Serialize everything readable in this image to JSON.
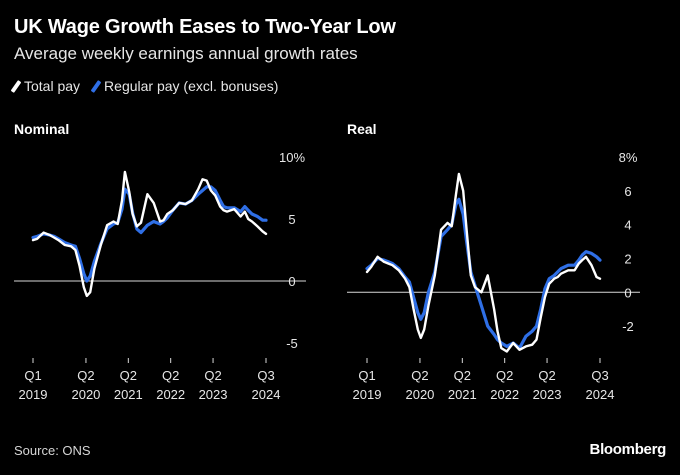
{
  "title": "UK Wage Growth Eases to Two-Year Low",
  "subtitle": "Average weekly earnings annual growth rates",
  "legend": [
    {
      "label": "Total pay",
      "color": "#ffffff"
    },
    {
      "label": "Regular pay (excl. bonuses)",
      "color": "#2f6fe6"
    }
  ],
  "source": "Source: ONS",
  "brand": "Bloomberg",
  "chart_data": [
    {
      "type": "line",
      "title": "Nominal",
      "ylim": [
        -5,
        10
      ],
      "yticks": [
        10,
        5,
        0,
        -5
      ],
      "ytick_labels": [
        "10%",
        "5",
        "0",
        "-5"
      ],
      "xticks": [
        {
          "x": 2019.0,
          "label": "Q1\n2019"
        },
        {
          "x": 2020.25,
          "label": "Q2\n2020"
        },
        {
          "x": 2021.25,
          "label": "Q2\n2021"
        },
        {
          "x": 2022.25,
          "label": "Q2\n2022"
        },
        {
          "x": 2023.25,
          "label": "Q2\n2023"
        },
        {
          "x": 2024.5,
          "label": "Q3\n2024"
        }
      ],
      "xlim": [
        2019.0,
        2024.67
      ],
      "series": [
        {
          "name": "Total pay",
          "color": "#ffffff",
          "x": [
            2019.0,
            2019.1,
            2019.25,
            2019.4,
            2019.5,
            2019.6,
            2019.75,
            2019.9,
            2020.0,
            2020.1,
            2020.2,
            2020.27,
            2020.35,
            2020.45,
            2020.6,
            2020.75,
            2020.9,
            2021.0,
            2021.1,
            2021.17,
            2021.27,
            2021.35,
            2021.45,
            2021.55,
            2021.7,
            2021.85,
            2022.0,
            2022.08,
            2022.17,
            2022.3,
            2022.45,
            2022.6,
            2022.75,
            2022.9,
            2023.0,
            2023.1,
            2023.2,
            2023.3,
            2023.42,
            2023.5,
            2023.58,
            2023.75,
            2023.9,
            2024.0,
            2024.08,
            2024.17,
            2024.3,
            2024.42,
            2024.5
          ],
          "y": [
            3.3,
            3.4,
            3.9,
            3.7,
            3.5,
            3.3,
            2.9,
            2.8,
            2.5,
            1.2,
            -0.5,
            -1.2,
            -0.9,
            1.0,
            2.9,
            4.5,
            4.8,
            4.6,
            6.5,
            8.8,
            7.2,
            5.4,
            4.4,
            4.7,
            7.0,
            6.3,
            4.8,
            4.9,
            5.4,
            5.7,
            6.3,
            6.2,
            6.5,
            7.4,
            8.2,
            8.1,
            7.3,
            6.9,
            6.0,
            5.7,
            5.6,
            5.8,
            5.2,
            5.6,
            5.0,
            4.8,
            4.4,
            4.0,
            3.8
          ]
        },
        {
          "name": "Regular pay (excl. bonuses)",
          "color": "#2f6fe6",
          "x": [
            2019.0,
            2019.1,
            2019.25,
            2019.4,
            2019.5,
            2019.6,
            2019.75,
            2019.9,
            2020.0,
            2020.1,
            2020.2,
            2020.27,
            2020.35,
            2020.45,
            2020.6,
            2020.75,
            2020.9,
            2021.0,
            2021.1,
            2021.17,
            2021.27,
            2021.35,
            2021.45,
            2021.55,
            2021.7,
            2021.85,
            2022.0,
            2022.08,
            2022.17,
            2022.3,
            2022.45,
            2022.6,
            2022.75,
            2022.9,
            2023.0,
            2023.1,
            2023.2,
            2023.3,
            2023.42,
            2023.5,
            2023.58,
            2023.75,
            2023.9,
            2024.0,
            2024.08,
            2024.17,
            2024.3,
            2024.42,
            2024.5
          ],
          "y": [
            3.5,
            3.6,
            3.8,
            3.7,
            3.6,
            3.4,
            3.1,
            2.9,
            2.8,
            1.8,
            0.6,
            0.0,
            0.4,
            1.6,
            3.0,
            4.2,
            4.6,
            4.7,
            5.8,
            7.4,
            7.0,
            5.5,
            4.2,
            3.9,
            4.5,
            4.8,
            4.6,
            4.8,
            5.1,
            5.7,
            6.3,
            6.2,
            6.5,
            7.0,
            7.3,
            7.6,
            7.6,
            7.3,
            6.5,
            6.0,
            5.9,
            5.9,
            5.6,
            6.0,
            5.7,
            5.4,
            5.2,
            4.9,
            4.9
          ]
        }
      ]
    },
    {
      "type": "line",
      "title": "Real",
      "ylim": [
        -3,
        8
      ],
      "yticks": [
        8,
        6,
        4,
        2,
        0,
        -2
      ],
      "ytick_labels": [
        "8%",
        "6",
        "4",
        "2",
        "0",
        "-2"
      ],
      "xticks": [
        {
          "x": 2019.0,
          "label": "Q1\n2019"
        },
        {
          "x": 2020.25,
          "label": "Q2\n2020"
        },
        {
          "x": 2021.25,
          "label": "Q2\n2021"
        },
        {
          "x": 2022.25,
          "label": "Q2\n2022"
        },
        {
          "x": 2023.25,
          "label": "Q2\n2023"
        },
        {
          "x": 2024.5,
          "label": "Q3\n2024"
        }
      ],
      "xlim": [
        2019.0,
        2024.67
      ],
      "series": [
        {
          "name": "Total pay",
          "color": "#ffffff",
          "x": [
            2019.0,
            2019.1,
            2019.25,
            2019.4,
            2019.5,
            2019.6,
            2019.75,
            2019.9,
            2020.0,
            2020.1,
            2020.2,
            2020.27,
            2020.35,
            2020.45,
            2020.6,
            2020.75,
            2020.9,
            2021.0,
            2021.1,
            2021.17,
            2021.27,
            2021.35,
            2021.45,
            2021.55,
            2021.7,
            2021.85,
            2022.0,
            2022.08,
            2022.17,
            2022.3,
            2022.45,
            2022.6,
            2022.75,
            2022.9,
            2023.0,
            2023.1,
            2023.2,
            2023.3,
            2023.42,
            2023.5,
            2023.58,
            2023.75,
            2023.9,
            2024.0,
            2024.08,
            2024.17,
            2024.3,
            2024.42,
            2024.5
          ],
          "y": [
            1.2,
            1.5,
            2.1,
            1.8,
            1.7,
            1.6,
            1.3,
            0.8,
            0.3,
            -1.0,
            -2.2,
            -2.7,
            -2.2,
            -0.8,
            1.0,
            3.7,
            4.1,
            3.9,
            5.8,
            7.0,
            6.0,
            3.7,
            1.0,
            0.3,
            0.0,
            1.0,
            -1.0,
            -2.3,
            -3.3,
            -3.5,
            -3.0,
            -3.4,
            -3.2,
            -3.1,
            -2.8,
            -1.5,
            -0.3,
            0.5,
            0.8,
            0.9,
            1.1,
            1.3,
            1.3,
            1.7,
            1.9,
            2.1,
            1.6,
            0.9,
            0.8
          ]
        },
        {
          "name": "Regular pay (excl. bonuses)",
          "color": "#2f6fe6",
          "x": [
            2019.0,
            2019.1,
            2019.25,
            2019.4,
            2019.5,
            2019.6,
            2019.75,
            2019.9,
            2020.0,
            2020.1,
            2020.2,
            2020.27,
            2020.35,
            2020.45,
            2020.6,
            2020.75,
            2020.9,
            2021.0,
            2021.1,
            2021.17,
            2021.27,
            2021.35,
            2021.45,
            2021.55,
            2021.7,
            2021.85,
            2022.0,
            2022.08,
            2022.17,
            2022.3,
            2022.45,
            2022.6,
            2022.75,
            2022.9,
            2023.0,
            2023.1,
            2023.2,
            2023.3,
            2023.42,
            2023.5,
            2023.58,
            2023.75,
            2023.9,
            2024.0,
            2024.08,
            2024.17,
            2024.3,
            2024.42,
            2024.5
          ],
          "y": [
            1.4,
            1.6,
            2.0,
            1.9,
            1.8,
            1.7,
            1.4,
            0.9,
            0.6,
            -0.3,
            -1.2,
            -1.6,
            -1.2,
            0.0,
            1.2,
            3.3,
            3.7,
            4.0,
            5.2,
            5.5,
            4.6,
            3.0,
            1.2,
            0.4,
            -0.8,
            -2.0,
            -2.5,
            -2.8,
            -3.0,
            -3.2,
            -3.0,
            -3.3,
            -2.6,
            -2.3,
            -2.0,
            -1.0,
            0.2,
            0.8,
            1.0,
            1.2,
            1.4,
            1.6,
            1.6,
            1.9,
            2.2,
            2.4,
            2.3,
            2.1,
            1.9
          ]
        }
      ]
    }
  ]
}
